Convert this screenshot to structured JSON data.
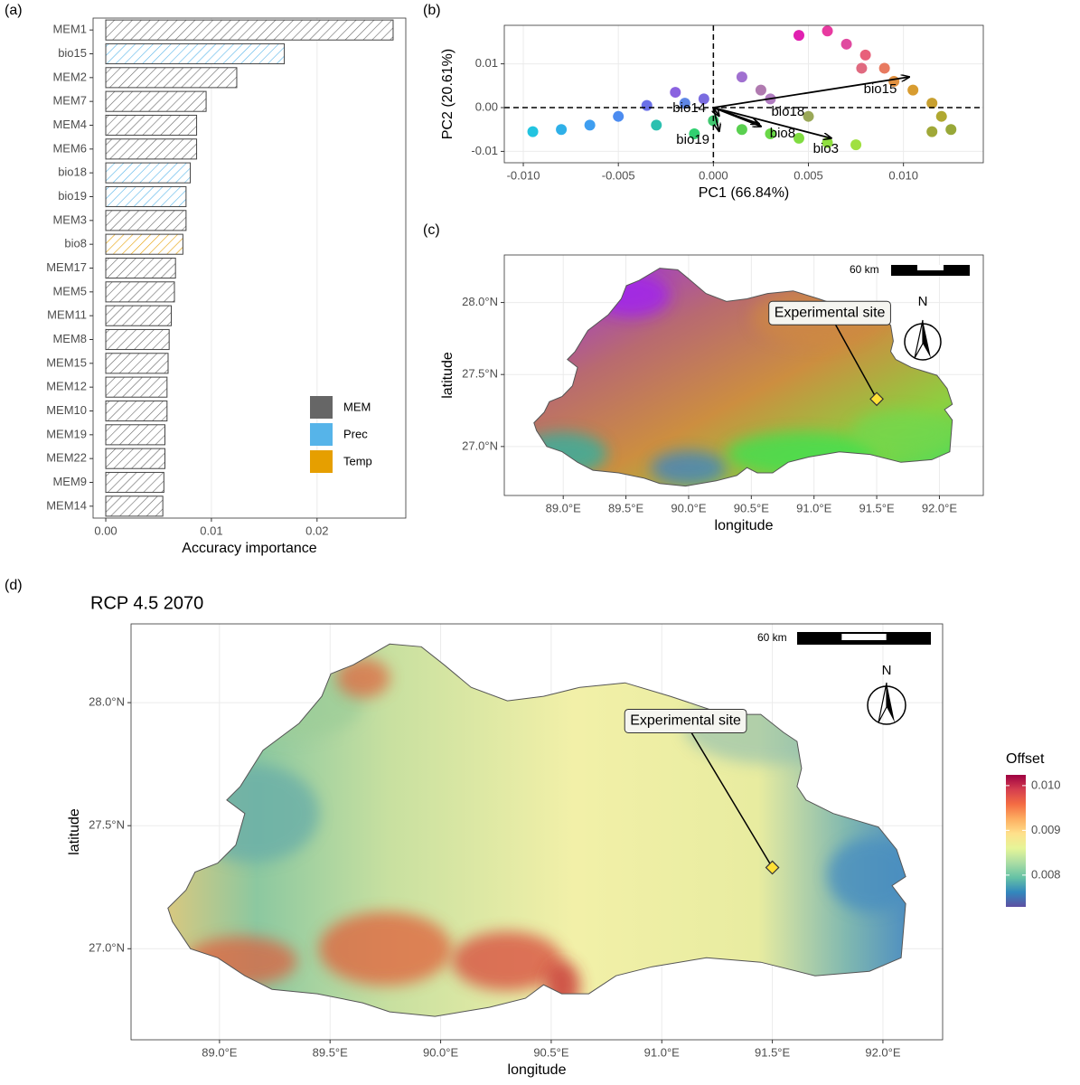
{
  "chart_data": [
    {
      "panel": "(a)",
      "type": "bar",
      "orientation": "horizontal",
      "x_label": "Accuracy importance",
      "categories": [
        "MEM1",
        "bio15",
        "MEM2",
        "MEM7",
        "MEM4",
        "MEM6",
        "bio18",
        "bio19",
        "MEM3",
        "bio8",
        "MEM17",
        "MEM5",
        "MEM11",
        "MEM8",
        "MEM15",
        "MEM12",
        "MEM10",
        "MEM19",
        "MEM22",
        "MEM9",
        "MEM14"
      ],
      "values": [
        0.0272,
        0.0169,
        0.0124,
        0.0095,
        0.0086,
        0.0086,
        0.008,
        0.0076,
        0.0076,
        0.0073,
        0.0066,
        0.0065,
        0.0062,
        0.006,
        0.0059,
        0.0058,
        0.0058,
        0.0056,
        0.0056,
        0.0055,
        0.0054
      ],
      "groups": [
        "MEM",
        "Prec",
        "MEM",
        "MEM",
        "MEM",
        "MEM",
        "Prec",
        "Prec",
        "MEM",
        "Temp",
        "MEM",
        "MEM",
        "MEM",
        "MEM",
        "MEM",
        "MEM",
        "MEM",
        "MEM",
        "MEM",
        "MEM",
        "MEM"
      ],
      "legend_items": [
        {
          "name": "MEM",
          "color": "#666666"
        },
        {
          "name": "Prec",
          "color": "#56b4e9"
        },
        {
          "name": "Temp",
          "color": "#e69f00"
        }
      ],
      "xlim": [
        -0.0012,
        0.0284
      ],
      "xticks": [
        {
          "value": 0,
          "label": "0.00"
        },
        {
          "value": 0.01,
          "label": "0.01"
        },
        {
          "value": 0.02,
          "label": "0.02"
        }
      ],
      "grid": true
    },
    {
      "panel": "(b)",
      "type": "scatter",
      "x_label": "PC1 (66.84%)",
      "y_label": "PC2 (20.61%)",
      "x": [
        -0.0095,
        -0.008,
        -0.0065,
        -0.005,
        -0.0035,
        -0.002,
        -0.0015,
        -0.003,
        -0.001,
        0.0,
        0.0015,
        0.003,
        0.0045,
        0.006,
        0.0075,
        0.005,
        0.003,
        0.0015,
        0.0025,
        -0.0005,
        0.0045,
        0.006,
        0.007,
        0.008,
        0.009,
        0.0095,
        0.0105,
        0.0115,
        0.012,
        0.0125,
        0.0115,
        0.0078
      ],
      "y": [
        -0.0055,
        -0.005,
        -0.004,
        -0.002,
        0.0005,
        0.0035,
        0.001,
        -0.004,
        -0.006,
        -0.003,
        -0.005,
        -0.006,
        -0.007,
        -0.008,
        -0.0085,
        -0.002,
        0.002,
        0.007,
        0.004,
        0.002,
        0.0165,
        0.0175,
        0.0145,
        0.012,
        0.009,
        0.006,
        0.004,
        0.001,
        -0.002,
        -0.005,
        -0.0055,
        0.009
      ],
      "colors": [
        "#22c4e0",
        "#2fb0e8",
        "#3f9ef0",
        "#4c8cf0",
        "#6a70e8",
        "#8a62e0",
        "#5e86e6",
        "#2cc0b0",
        "#30d070",
        "#40c870",
        "#5ad050",
        "#6ad848",
        "#80dc40",
        "#90e040",
        "#a0e040",
        "#9aa858",
        "#b07cc0",
        "#a070d0",
        "#b07ab0",
        "#7a6ce0",
        "#e020b0",
        "#e83aa0",
        "#e04aa0",
        "#e8607a",
        "#e87a60",
        "#e09040",
        "#d89c30",
        "#c8a030",
        "#b0a830",
        "#98a838",
        "#a0a838",
        "#e06a80"
      ],
      "arrows": {
        "names": [
          "bio14",
          "bio15",
          "bio18",
          "bio19",
          "bio8",
          "bio3"
        ],
        "x": [
          0.0003,
          0.0103,
          0.0024,
          0.0003,
          0.0025,
          0.0062
        ],
        "y": [
          -0.0019,
          0.007,
          -0.0037,
          -0.0054,
          -0.0043,
          -0.007
        ]
      },
      "xlim": [
        -0.011,
        0.0142
      ],
      "ylim": [
        -0.0126,
        0.0188
      ],
      "xticks": [
        {
          "value": -0.01,
          "label": "-0.010"
        },
        {
          "value": -0.005,
          "label": "-0.005"
        },
        {
          "value": 0,
          "label": "0.000"
        },
        {
          "value": 0.005,
          "label": "0.005"
        },
        {
          "value": 0.01,
          "label": "0.010"
        }
      ],
      "yticks": [
        {
          "value": -0.01,
          "label": "-0.01"
        },
        {
          "value": 0,
          "label": "0.00"
        },
        {
          "value": 0.01,
          "label": "0.01"
        }
      ],
      "grid": true,
      "reference_lines": true
    },
    {
      "panel": "(c)",
      "type": "map",
      "x_label": "longitude",
      "y_label": "latitude",
      "xlim": [
        88.53,
        92.35
      ],
      "ylim": [
        26.66,
        28.33
      ],
      "xticks": [
        {
          "value": 89,
          "label": "89.0°E"
        },
        {
          "value": 89.5,
          "label": "89.5°E"
        },
        {
          "value": 90,
          "label": "90.0°E"
        },
        {
          "value": 90.5,
          "label": "90.5°E"
        },
        {
          "value": 91,
          "label": "91.0°E"
        },
        {
          "value": 91.5,
          "label": "91.5°E"
        },
        {
          "value": 92,
          "label": "92.0°E"
        }
      ],
      "yticks": [
        {
          "value": 27,
          "label": "27.0°N"
        },
        {
          "value": 27.5,
          "label": "27.5°N"
        },
        {
          "value": 28,
          "label": "28.0°N"
        }
      ],
      "site": {
        "label": "Experimental site",
        "lon": 91.5,
        "lat": 27.33
      },
      "scale_label": "60 km",
      "north_label": "N",
      "grid": true
    },
    {
      "panel": "(d)",
      "type": "map",
      "title": "RCP 4.5 2070",
      "x_label": "longitude",
      "y_label": "latitude",
      "xlim": [
        88.6,
        92.27
      ],
      "ylim": [
        26.63,
        28.32
      ],
      "xticks": [
        {
          "value": 89,
          "label": "89.0°E"
        },
        {
          "value": 89.5,
          "label": "89.5°E"
        },
        {
          "value": 90,
          "label": "90.0°E"
        },
        {
          "value": 90.5,
          "label": "90.5°E"
        },
        {
          "value": 91,
          "label": "91.0°E"
        },
        {
          "value": 91.5,
          "label": "91.5°E"
        },
        {
          "value": 92,
          "label": "92.0°E"
        }
      ],
      "yticks": [
        {
          "value": 27,
          "label": "27.0°N"
        },
        {
          "value": 27.5,
          "label": "27.5°N"
        },
        {
          "value": 28,
          "label": "28.0°N"
        }
      ],
      "site": {
        "label": "Experimental site",
        "lon": 91.5,
        "lat": 27.33
      },
      "scale_label": "60 km",
      "north_label": "N",
      "grid": true,
      "colorbar": {
        "title": "Offset",
        "lim": [
          0.00729,
          0.01024
        ],
        "ticks": [
          0.008,
          0.009,
          {
            "value": 0.01,
            "label": "0.010"
          }
        ],
        "colors": [
          "#5e4fa2",
          "#3288bd",
          "#66c2a5",
          "#abdda4",
          "#e6f598",
          "#fee08b",
          "#fdae61",
          "#f46d43",
          "#d53e4f",
          "#9e0142"
        ]
      }
    }
  ]
}
